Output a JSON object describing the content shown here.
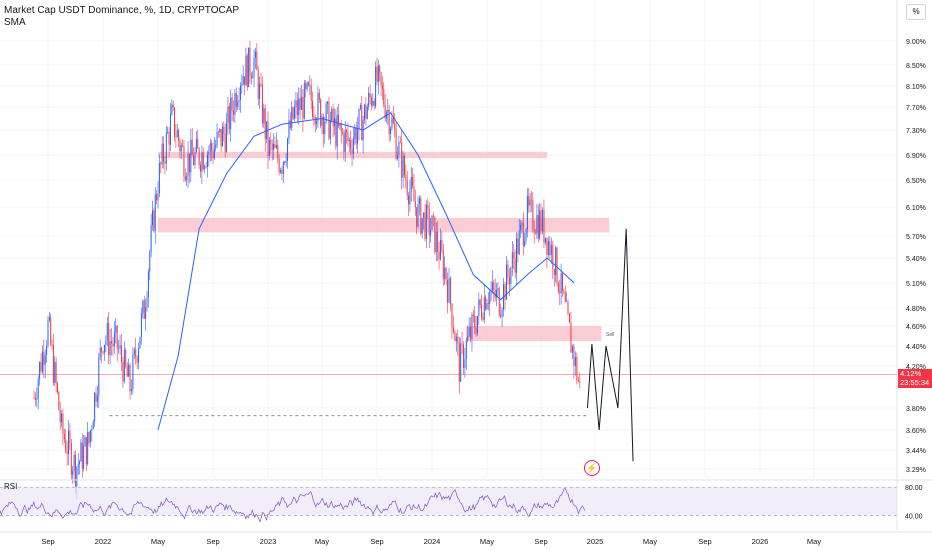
{
  "header": {
    "title": "Market Cap USDT Dominance, %, 1D, CRYPTOCAP",
    "indicator": "SMA",
    "scale_button": "%"
  },
  "rsi": {
    "label": "RSI",
    "levels": [
      "80.00",
      "40.00"
    ]
  },
  "annotation": {
    "sell": "Sell"
  },
  "price_tags": {
    "last": "4.12%",
    "countdown": "23:55:34"
  },
  "colors": {
    "up": "#2962ff",
    "down": "#f23645",
    "sma": "#2962ff",
    "zone": "#f8c4cb",
    "rsi_line": "#7e57c2",
    "rsi_band": "#ede7f6",
    "forecast": "#131722"
  },
  "chart_data": {
    "type": "line",
    "title": "Market Cap USDT Dominance, %, 1D, CRYPTOCAP",
    "y_ticks": [
      "9.00%",
      "8.50%",
      "8.10%",
      "7.70%",
      "7.30%",
      "6.90%",
      "6.50%",
      "6.10%",
      "5.70%",
      "5.40%",
      "5.10%",
      "4.80%",
      "4.60%",
      "4.40%",
      "4.20%",
      "3.80%",
      "3.60%",
      "3.44%",
      "3.29%"
    ],
    "x_ticks": [
      "Sep",
      "2022",
      "May",
      "Sep",
      "2023",
      "May",
      "Sep",
      "2024",
      "May",
      "Sep",
      "2025",
      "May",
      "Sep",
      "2026",
      "May"
    ],
    "series": [
      {
        "type": "candlestick",
        "values": [
          {
            "date": "2021-08-01",
            "close": 3.9
          },
          {
            "date": "2021-09-01",
            "close": 4.6
          },
          {
            "date": "2021-10-01",
            "close": 3.6
          },
          {
            "date": "2021-11-01",
            "close": 3.3
          },
          {
            "date": "2021-12-01",
            "close": 3.5
          },
          {
            "date": "2022-01-01",
            "close": 4.5
          },
          {
            "date": "2022-02-01",
            "close": 4.4
          },
          {
            "date": "2022-03-01",
            "close": 4.0
          },
          {
            "date": "2022-04-01",
            "close": 4.8
          },
          {
            "date": "2022-05-01",
            "close": 6.5
          },
          {
            "date": "2022-06-01",
            "close": 7.5
          },
          {
            "date": "2022-07-01",
            "close": 6.8
          },
          {
            "date": "2022-08-01",
            "close": 6.9
          },
          {
            "date": "2022-09-01",
            "close": 7.0
          },
          {
            "date": "2022-10-01",
            "close": 7.3
          },
          {
            "date": "2022-11-01",
            "close": 8.3
          },
          {
            "date": "2022-12-01",
            "close": 8.6
          },
          {
            "date": "2023-01-01",
            "close": 7.0
          },
          {
            "date": "2023-02-01",
            "close": 6.8
          },
          {
            "date": "2023-03-01",
            "close": 7.6
          },
          {
            "date": "2023-04-01",
            "close": 7.9
          },
          {
            "date": "2023-05-01",
            "close": 7.6
          },
          {
            "date": "2023-06-01",
            "close": 7.3
          },
          {
            "date": "2023-07-01",
            "close": 7.1
          },
          {
            "date": "2023-08-01",
            "close": 7.5
          },
          {
            "date": "2023-09-01",
            "close": 8.2
          },
          {
            "date": "2023-10-01",
            "close": 7.5
          },
          {
            "date": "2023-11-01",
            "close": 6.6
          },
          {
            "date": "2023-12-01",
            "close": 6.0
          },
          {
            "date": "2024-01-01",
            "close": 5.8
          },
          {
            "date": "2024-02-01",
            "close": 5.2
          },
          {
            "date": "2024-03-01",
            "close": 4.2
          },
          {
            "date": "2024-04-01",
            "close": 4.6
          },
          {
            "date": "2024-05-01",
            "close": 5.0
          },
          {
            "date": "2024-06-01",
            "close": 4.9
          },
          {
            "date": "2024-07-01",
            "close": 5.4
          },
          {
            "date": "2024-08-01",
            "close": 6.0
          },
          {
            "date": "2024-09-01",
            "close": 5.9
          },
          {
            "date": "2024-10-01",
            "close": 5.4
          },
          {
            "date": "2024-11-01",
            "close": 4.6
          },
          {
            "date": "2024-12-01",
            "close": 3.9
          }
        ]
      },
      {
        "type": "line",
        "values": [
          {
            "date": "2022-05-01",
            "y": 3.6
          },
          {
            "date": "2022-06-15",
            "y": 4.3
          },
          {
            "date": "2022-08-01",
            "y": 5.8
          },
          {
            "date": "2022-10-01",
            "y": 6.6
          },
          {
            "date": "2022-12-01",
            "y": 7.2
          },
          {
            "date": "2023-02-01",
            "y": 7.4
          },
          {
            "date": "2023-05-01",
            "y": 7.5
          },
          {
            "date": "2023-08-01",
            "y": 7.3
          },
          {
            "date": "2023-10-01",
            "y": 7.6
          },
          {
            "date": "2023-12-01",
            "y": 6.9
          },
          {
            "date": "2024-02-01",
            "y": 6.0
          },
          {
            "date": "2024-04-01",
            "y": 5.2
          },
          {
            "date": "2024-06-01",
            "y": 4.9
          },
          {
            "date": "2024-08-01",
            "y": 5.2
          },
          {
            "date": "2024-09-15",
            "y": 5.4
          },
          {
            "date": "2024-11-15",
            "y": 5.1
          }
        ]
      }
    ],
    "zones": [
      {
        "y_from": 6.85,
        "y_to": 6.95,
        "x_from": "2022-05-01",
        "x_to": "2024-09-15"
      },
      {
        "y_from": 5.75,
        "y_to": 5.95,
        "x_from": "2022-05-01",
        "x_to": "2025-02-01"
      },
      {
        "y_from": 4.45,
        "y_to": 4.6,
        "x_from": "2024-03-15",
        "x_to": "2025-01-15"
      }
    ],
    "dashed_level": 3.73,
    "last_price_level": 4.12,
    "forecast": [
      {
        "date": "2024-12-15",
        "y": 3.8
      },
      {
        "date": "2024-12-25",
        "y": 4.42
      },
      {
        "date": "2025-01-10",
        "y": 3.6
      },
      {
        "date": "2025-01-25",
        "y": 4.4
      },
      {
        "date": "2025-02-20",
        "y": 3.8
      },
      {
        "date": "2025-03-10",
        "y": 5.8
      },
      {
        "date": "2025-03-25",
        "y": 3.35
      }
    ],
    "rsi_levels": [
      80,
      40
    ]
  }
}
